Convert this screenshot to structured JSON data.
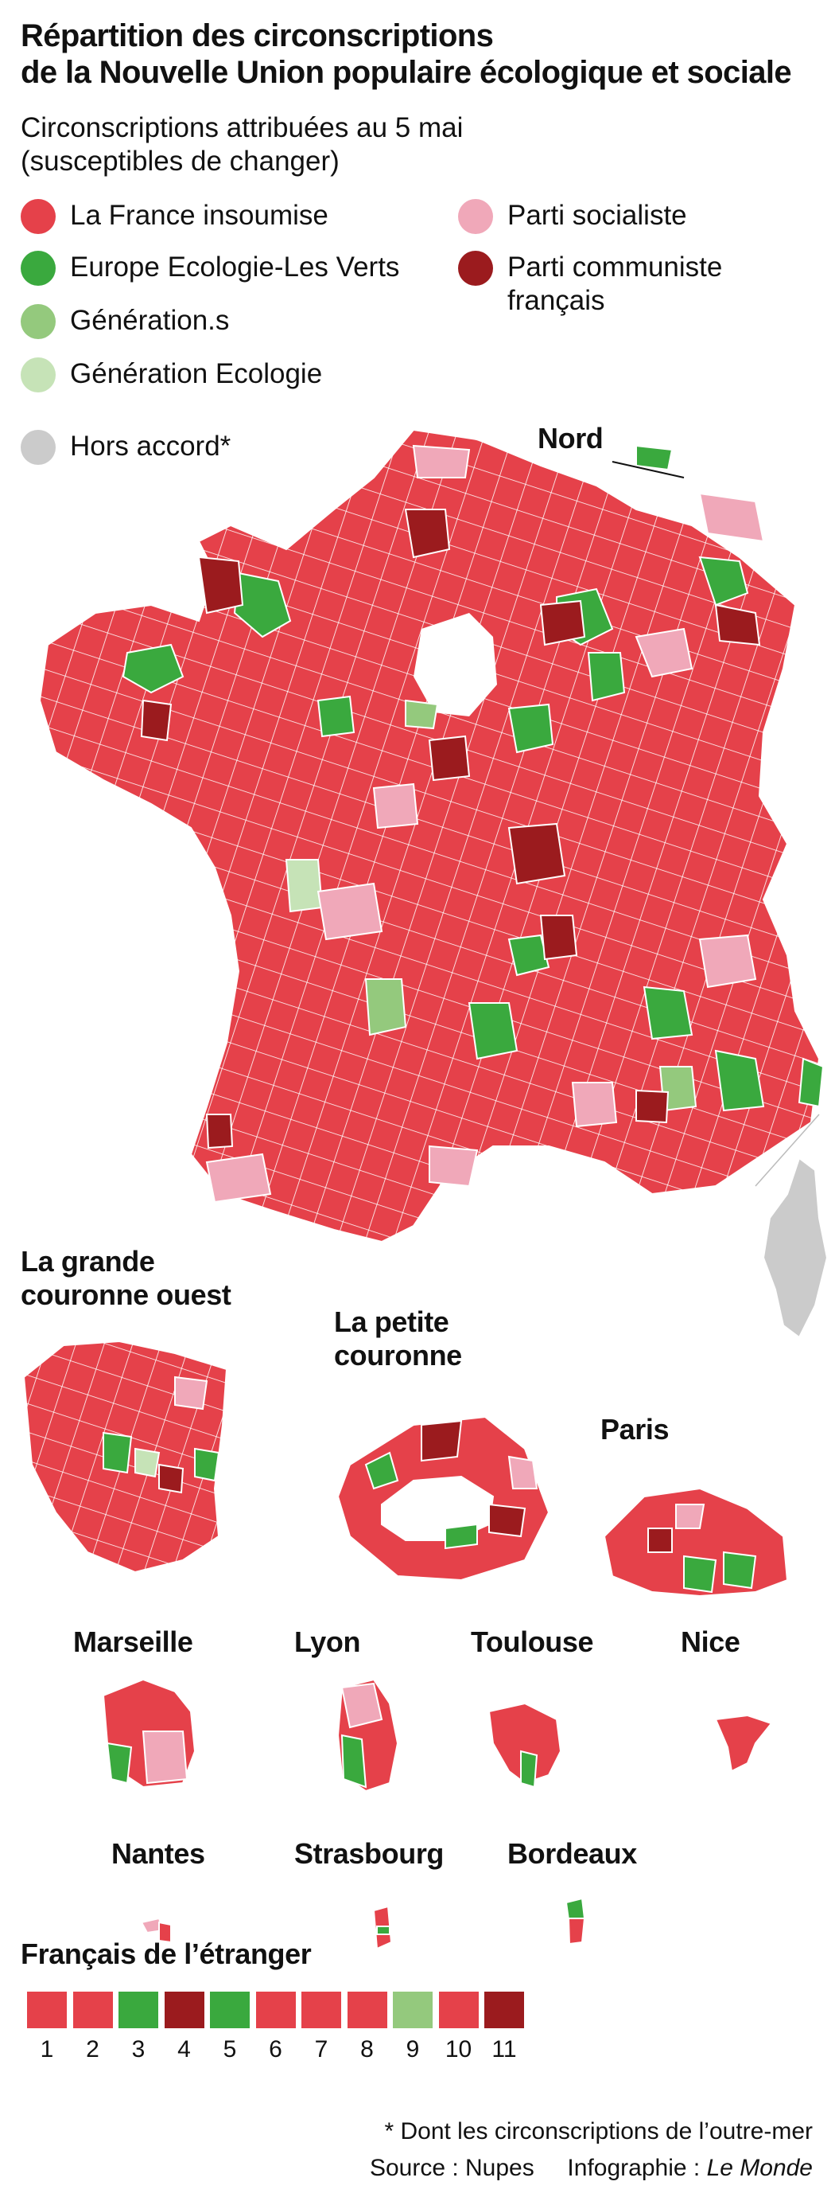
{
  "title_lines": [
    "Répartition des circonscriptions",
    "de la Nouvelle Union populaire écologique et sociale"
  ],
  "subtitle_lines": [
    "Circonscriptions attribuées au 5 mai",
    "(susceptibles de changer)"
  ],
  "colors": {
    "lfi": "#e5414a",
    "eelv": "#3aa93e",
    "gens": "#94c97d",
    "gen_eco": "#c6e3b7",
    "hors": "#cbcbcb",
    "ps": "#f0a8b9",
    "pcf": "#9b1b1e",
    "border": "#ffffff"
  },
  "legend": [
    {
      "label": "La France insoumise",
      "color_key": "lfi"
    },
    {
      "label": "Europe Ecologie-Les Verts",
      "color_key": "eelv"
    },
    {
      "label": "Génération.s",
      "color_key": "gens"
    },
    {
      "label": "Génération Ecologie",
      "color_key": "gen_eco"
    },
    {
      "label": "Hors accord*",
      "color_key": "hors"
    },
    {
      "label": "Parti socialiste",
      "color_key": "ps"
    },
    {
      "label": "Parti communiste",
      "label_line2": "français",
      "color_key": "pcf"
    }
  ],
  "map_labels": {
    "nord": "Nord",
    "grande_couronne": [
      "La grande",
      "couronne ouest"
    ],
    "petite_couronne": [
      "La petite",
      "couronne"
    ],
    "paris": "Paris",
    "marseille": "Marseille",
    "lyon": "Lyon",
    "toulouse": "Toulouse",
    "nice": "Nice",
    "nantes": "Nantes",
    "strasbourg": "Strasbourg",
    "bordeaux": "Bordeaux"
  },
  "etranger": {
    "title": "Français de l’étranger",
    "items": [
      {
        "num": "1",
        "color_key": "lfi"
      },
      {
        "num": "2",
        "color_key": "lfi"
      },
      {
        "num": "3",
        "color_key": "eelv"
      },
      {
        "num": "4",
        "color_key": "pcf"
      },
      {
        "num": "5",
        "color_key": "eelv"
      },
      {
        "num": "6",
        "color_key": "lfi"
      },
      {
        "num": "7",
        "color_key": "lfi"
      },
      {
        "num": "8",
        "color_key": "lfi"
      },
      {
        "num": "9",
        "color_key": "gens"
      },
      {
        "num": "10",
        "color_key": "lfi"
      },
      {
        "num": "11",
        "color_key": "pcf"
      }
    ]
  },
  "footnote": "* Dont les circonscriptions de l’outre-mer",
  "credits": {
    "source": "Source : Nupes",
    "infographie": "Infographie :",
    "outlet": "Le Monde"
  }
}
